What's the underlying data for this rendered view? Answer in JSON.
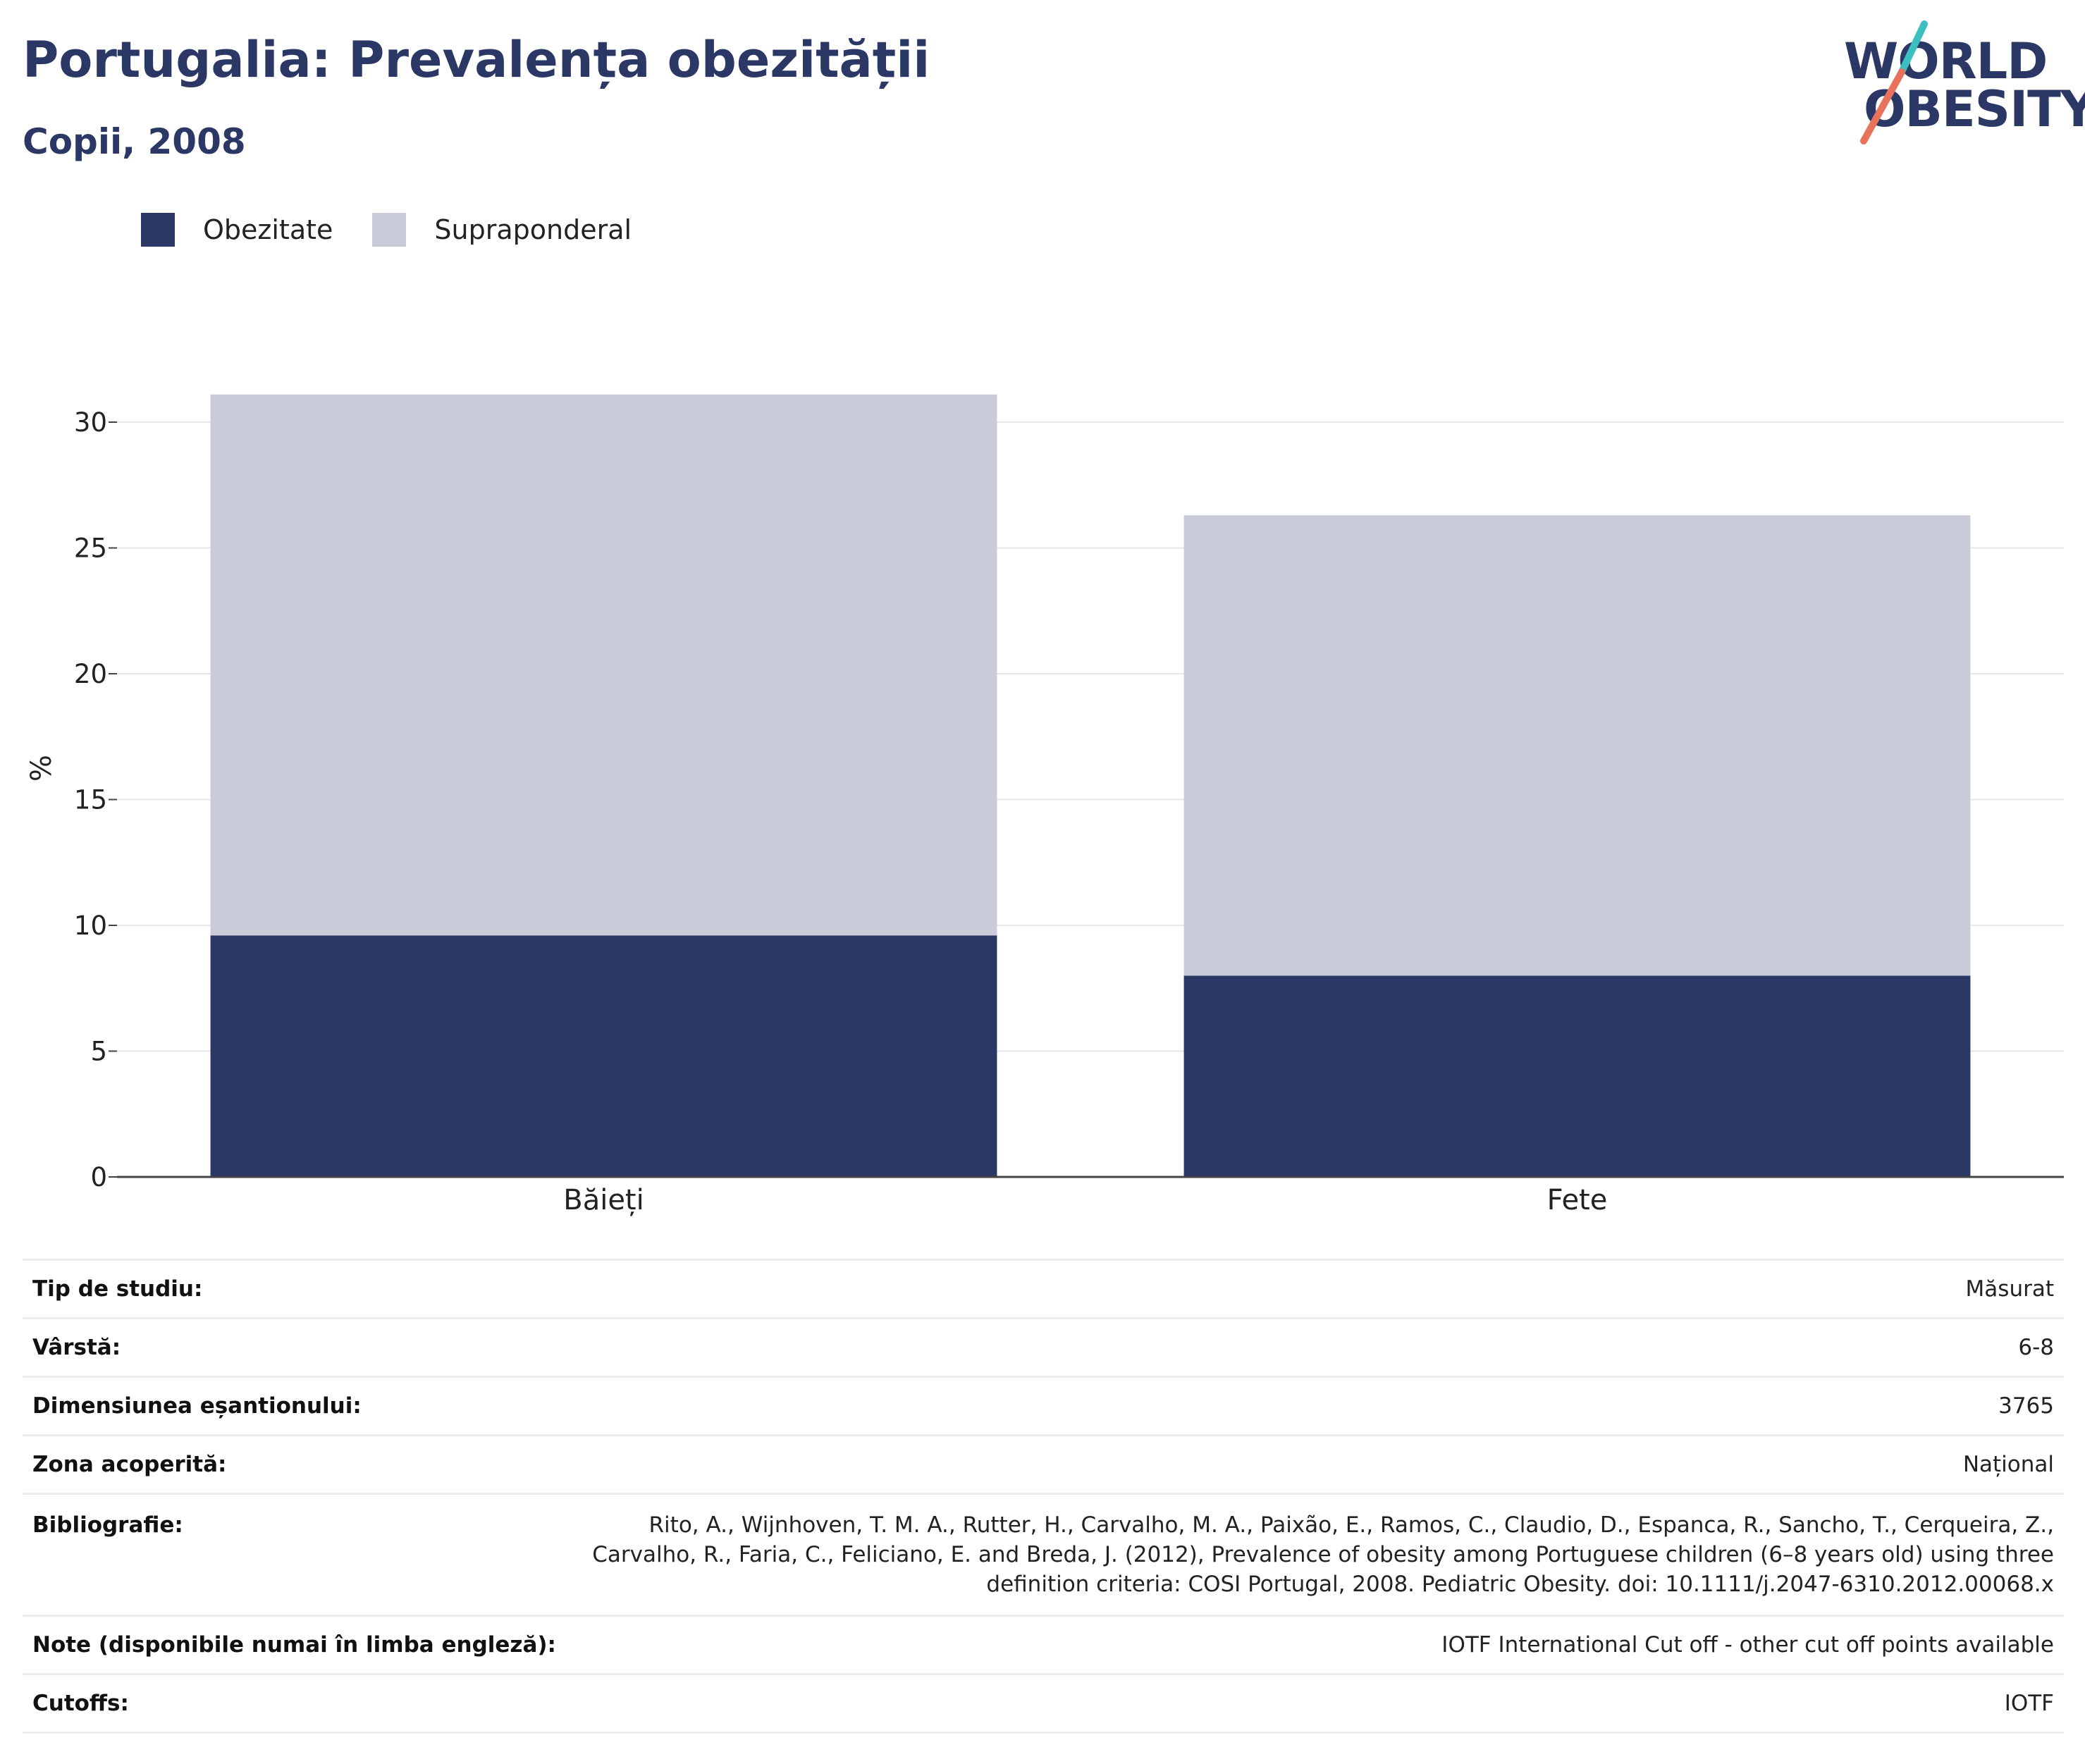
{
  "header": {
    "title": "Portugalia: Prevalența obezității",
    "subtitle": "Copii, 2008"
  },
  "logo": {
    "line1": "WORLD",
    "line2": "OBESITY",
    "colors": {
      "text": "#2b3765",
      "slash_top": "#3bbfc1",
      "slash_bottom": "#e8725c"
    }
  },
  "legend": {
    "items": [
      {
        "label": "Obezitate",
        "color": "#2b3765"
      },
      {
        "label": "Supraponderal",
        "color": "#c9ccd8"
      }
    ]
  },
  "chart_data": {
    "type": "bar",
    "stacked": true,
    "categories": [
      "Băieți",
      "Fete"
    ],
    "series": [
      {
        "name": "Obezitate",
        "color": "#2b3765",
        "values": [
          9.6,
          8.0
        ]
      },
      {
        "name": "Supraponderal",
        "color": "#c9ccd8",
        "values": [
          21.5,
          18.3
        ]
      }
    ],
    "ylabel": "%",
    "ylim": [
      0,
      31.5
    ],
    "yticks": [
      0,
      5,
      10,
      15,
      20,
      25,
      30
    ],
    "grid": true,
    "legend_position": "top-left"
  },
  "info": {
    "rows": [
      {
        "key": "Tip de studiu:",
        "value": "Măsurat"
      },
      {
        "key": "Vârstă:",
        "value": "6-8"
      },
      {
        "key": "Dimensiunea eșantionului:",
        "value": "3765"
      },
      {
        "key": "Zona acoperită:",
        "value": "Național"
      },
      {
        "key": "Bibliografie:",
        "value": "Rito, A., Wijnhoven, T. M. A., Rutter, H., Carvalho, M. A., Paixão, E., Ramos, C., Claudio, D., Espanca, R., Sancho, T., Cerqueira, Z., Carvalho, R., Faria, C., Feliciano, E. and Breda, J. (2012), Prevalence of obesity among Portuguese children (6–8 years old) using three definition criteria: COSI Portugal, 2008. Pediatric Obesity. doi: 10.1111/j.2047-6310.2012.00068.x"
      },
      {
        "key": "Note (disponibile numai în limba engleză):",
        "value": "IOTF International Cut off - other cut off points available"
      },
      {
        "key": "Cutoffs:",
        "value": "IOTF"
      }
    ]
  }
}
